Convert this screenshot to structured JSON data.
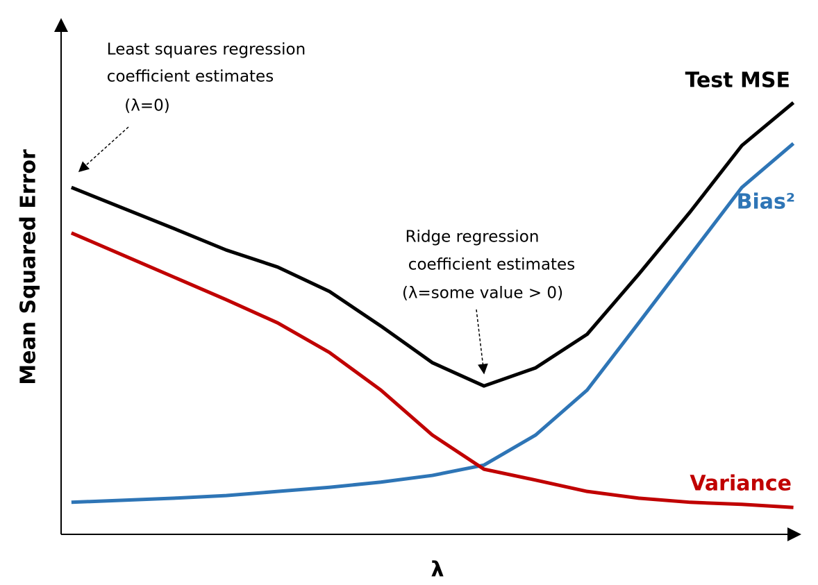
{
  "chart_data": {
    "type": "line",
    "x_label": "λ",
    "y_label": "Mean Squared Error",
    "x": [
      0,
      1,
      2,
      3,
      4,
      5,
      6,
      7,
      8,
      9,
      10,
      11,
      12,
      13,
      14
    ],
    "xlim": [
      -0.2,
      14.1
    ],
    "ylim": [
      0,
      100
    ],
    "grid": false,
    "series": [
      {
        "name": "Test MSE",
        "color": "#000000",
        "values": [
          67.1,
          63.1,
          59.1,
          55.0,
          51.7,
          47.0,
          40.3,
          33.2,
          28.7,
          32.2,
          38.7,
          50.3,
          62.4,
          75.2,
          83.5
        ]
      },
      {
        "name": "Bias²",
        "color": "#2e75b6",
        "values": [
          6.2,
          6.6,
          7.0,
          7.5,
          8.3,
          9.1,
          10.1,
          11.4,
          13.4,
          19.2,
          27.9,
          40.9,
          54.0,
          67.1,
          75.6
        ]
      },
      {
        "name": "Variance",
        "color": "#c00000",
        "values": [
          58.3,
          54.0,
          49.7,
          45.4,
          40.9,
          35.2,
          27.9,
          19.2,
          12.6,
          10.5,
          8.3,
          7.0,
          6.2,
          5.8,
          5.2
        ]
      }
    ],
    "annotations": [
      {
        "lines": [
          "Least squares regression",
          "coefficient estimates",
          "(λ=0)"
        ]
      },
      {
        "lines": [
          "Ridge regression",
          "coefficient estimates",
          "(λ=some value > 0)"
        ]
      }
    ]
  }
}
